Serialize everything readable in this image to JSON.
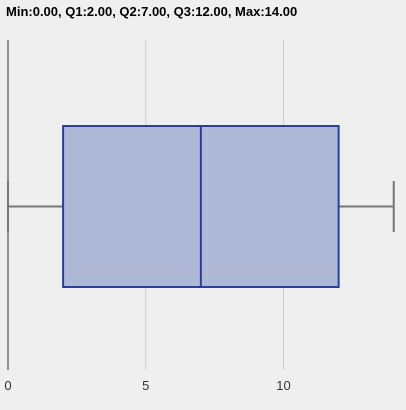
{
  "title": "Min:0.00, Q1:2.00, Q2:7.00, Q3:12.00, Max:14.00",
  "colors": {
    "background": "#efefef",
    "box_fill": "#b0b8d8",
    "box_stroke": "#2a3f9a",
    "whisker": "#777777",
    "grid": "#cccccc",
    "axis": "#333333"
  },
  "chart_data": {
    "type": "boxplot",
    "orientation": "horizontal",
    "min": 0,
    "q1": 2,
    "median": 7,
    "q3": 12,
    "max": 14,
    "xlim": [
      0,
      14.3
    ],
    "xticks": [
      0,
      5,
      10
    ],
    "tick_labels": [
      "0",
      "5",
      "10"
    ],
    "grid": true
  }
}
